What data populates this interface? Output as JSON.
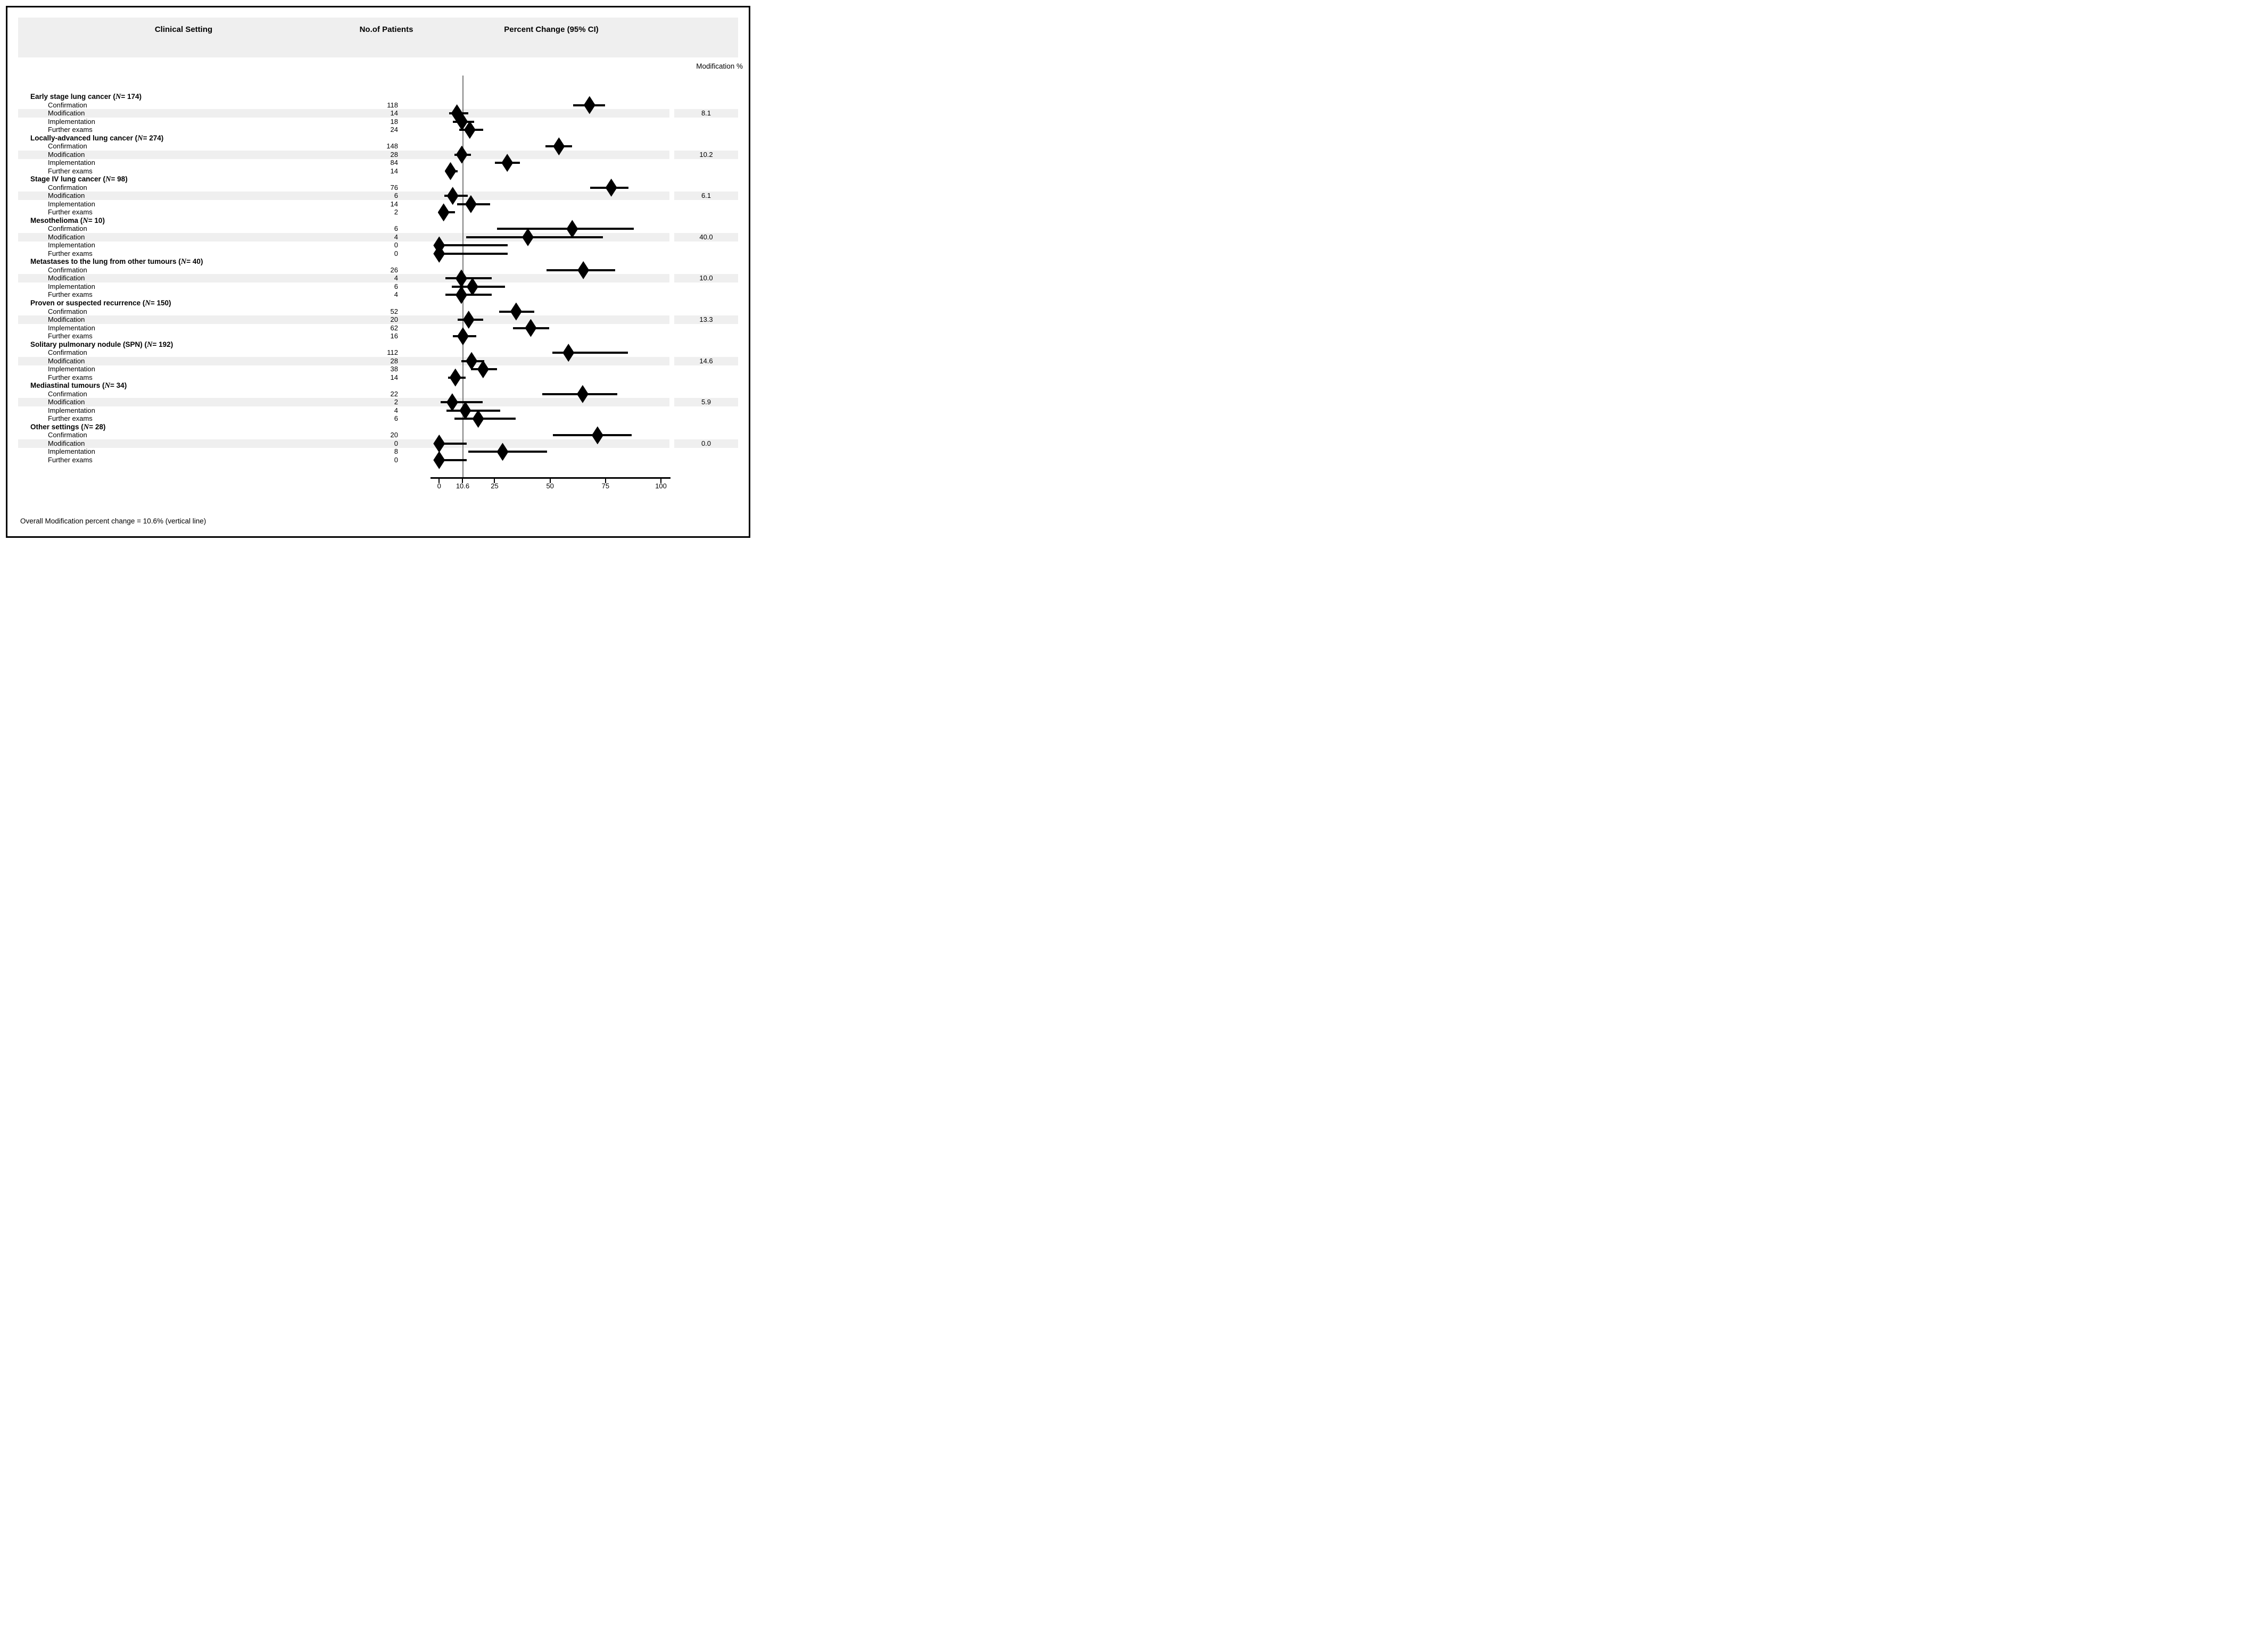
{
  "figure": {
    "columns": {
      "clinical_setting": "Clinical Setting",
      "no_of_patients": "No.of Patients",
      "percent_change": "Percent Change (95% CI)"
    },
    "right_column_label": "Modification %",
    "footnote": "Overall Modification percent change = 10.6% (vertical line)"
  },
  "colors": {
    "band": "#efefef",
    "header_band": "#efefef",
    "ref_line": "#7d7d7d",
    "marker": "#000000",
    "text": "#000000"
  },
  "chart_data": {
    "type": "scatter",
    "subtype": "forest-plot",
    "title": "",
    "xlabel": "",
    "ylabel": "",
    "xlim": [
      -4,
      104
    ],
    "grid": false,
    "legend": "none",
    "x_ticks": [
      {
        "label": "0",
        "value": 0
      },
      {
        "label": "10.6",
        "value": 10.6
      },
      {
        "label": "25",
        "value": 25
      },
      {
        "label": "50",
        "value": 50
      },
      {
        "label": "75",
        "value": 75
      },
      {
        "label": "100",
        "value": 100
      }
    ],
    "reference_line": {
      "value": 10.6,
      "meaning": "Overall Modification percent change"
    },
    "n_symbol": "N",
    "highlighted_row": "Modification",
    "groups": [
      {
        "label": "Early stage lung cancer",
        "n": "174",
        "modification_pct": "8.1",
        "rows": [
          {
            "category": "Confirmation",
            "patients": "118",
            "estimate": 67.8,
            "ci_low": 60.4,
            "ci_high": 74.7
          },
          {
            "category": "Modification",
            "patients": "14",
            "estimate": 8.0,
            "ci_low": 4.5,
            "ci_high": 13.1
          },
          {
            "category": "Implementation",
            "patients": "18",
            "estimate": 10.3,
            "ci_low": 6.2,
            "ci_high": 15.8
          },
          {
            "category": "Further exams",
            "patients": "24",
            "estimate": 13.8,
            "ci_low": 9.0,
            "ci_high": 19.8
          }
        ]
      },
      {
        "label": "Locally-advanced lung cancer",
        "n": "274",
        "modification_pct": "10.2",
        "rows": [
          {
            "category": "Confirmation",
            "patients": "148",
            "estimate": 54.0,
            "ci_low": 47.9,
            "ci_high": 60.0
          },
          {
            "category": "Modification",
            "patients": "28",
            "estimate": 10.2,
            "ci_low": 6.9,
            "ci_high": 14.4
          },
          {
            "category": "Implementation",
            "patients": "84",
            "estimate": 30.7,
            "ci_low": 25.2,
            "ci_high": 36.5
          },
          {
            "category": "Further exams",
            "patients": "14",
            "estimate": 5.1,
            "ci_low": 2.8,
            "ci_high": 8.4
          }
        ]
      },
      {
        "label": "Stage IV lung cancer",
        "n": "98",
        "modification_pct": "6.1",
        "rows": [
          {
            "category": "Confirmation",
            "patients": "76",
            "estimate": 77.6,
            "ci_low": 68.0,
            "ci_high": 85.4
          },
          {
            "category": "Modification",
            "patients": "6",
            "estimate": 6.1,
            "ci_low": 2.3,
            "ci_high": 12.9
          },
          {
            "category": "Implementation",
            "patients": "14",
            "estimate": 14.3,
            "ci_low": 8.0,
            "ci_high": 22.9
          },
          {
            "category": "Further exams",
            "patients": "2",
            "estimate": 2.0,
            "ci_low": 0.2,
            "ci_high": 7.2
          }
        ]
      },
      {
        "label": "Mesothelioma",
        "n": "10",
        "modification_pct": "40.0",
        "rows": [
          {
            "category": "Confirmation",
            "patients": "6",
            "estimate": 60.0,
            "ci_low": 26.2,
            "ci_high": 87.8
          },
          {
            "category": "Modification",
            "patients": "4",
            "estimate": 40.0,
            "ci_low": 12.2,
            "ci_high": 73.8
          },
          {
            "category": "Implementation",
            "patients": "0",
            "estimate": 0.0,
            "ci_low": 0.0,
            "ci_high": 30.8
          },
          {
            "category": "Further exams",
            "patients": "0",
            "estimate": 0.0,
            "ci_low": 0.0,
            "ci_high": 30.8
          }
        ]
      },
      {
        "label": "Metastases to the lung from other tumours",
        "n": "40",
        "modification_pct": "10.0",
        "rows": [
          {
            "category": "Confirmation",
            "patients": "26",
            "estimate": 65.0,
            "ci_low": 48.3,
            "ci_high": 79.4
          },
          {
            "category": "Modification",
            "patients": "4",
            "estimate": 10.0,
            "ci_low": 2.8,
            "ci_high": 23.7
          },
          {
            "category": "Implementation",
            "patients": "6",
            "estimate": 15.0,
            "ci_low": 5.7,
            "ci_high": 29.8
          },
          {
            "category": "Further exams",
            "patients": "4",
            "estimate": 10.0,
            "ci_low": 2.8,
            "ci_high": 23.7
          }
        ]
      },
      {
        "label": "Proven or suspected recurrence",
        "n": "150",
        "modification_pct": "13.3",
        "rows": [
          {
            "category": "Confirmation",
            "patients": "52",
            "estimate": 34.7,
            "ci_low": 27.1,
            "ci_high": 42.9
          },
          {
            "category": "Modification",
            "patients": "20",
            "estimate": 13.3,
            "ci_low": 8.3,
            "ci_high": 19.8
          },
          {
            "category": "Implementation",
            "patients": "62",
            "estimate": 41.3,
            "ci_low": 33.4,
            "ci_high": 49.7
          },
          {
            "category": "Further exams",
            "patients": "16",
            "estimate": 10.7,
            "ci_low": 6.2,
            "ci_high": 16.8
          }
        ]
      },
      {
        "label": "Solitary pulmonary nodule (SPN)",
        "n": "192",
        "modification_pct": "14.6",
        "rows": [
          {
            "category": "Confirmation",
            "patients": "112",
            "estimate": 58.3,
            "ci_low": 51.0,
            "ci_high": 85.0
          },
          {
            "category": "Modification",
            "patients": "28",
            "estimate": 14.6,
            "ci_low": 9.9,
            "ci_high": 20.4
          },
          {
            "category": "Implementation",
            "patients": "38",
            "estimate": 19.8,
            "ci_low": 14.4,
            "ci_high": 26.2
          },
          {
            "category": "Further exams",
            "patients": "14",
            "estimate": 7.3,
            "ci_low": 4.0,
            "ci_high": 11.9
          }
        ]
      },
      {
        "label": "Mediastinal tumours",
        "n": "34",
        "modification_pct": "5.9",
        "rows": [
          {
            "category": "Confirmation",
            "patients": "22",
            "estimate": 64.7,
            "ci_low": 46.5,
            "ci_high": 80.3
          },
          {
            "category": "Modification",
            "patients": "2",
            "estimate": 5.9,
            "ci_low": 0.7,
            "ci_high": 19.7
          },
          {
            "category": "Implementation",
            "patients": "4",
            "estimate": 11.8,
            "ci_low": 3.3,
            "ci_high": 27.5
          },
          {
            "category": "Further exams",
            "patients": "6",
            "estimate": 17.6,
            "ci_low": 6.8,
            "ci_high": 34.5
          }
        ]
      },
      {
        "label": "Other settings",
        "n": "28",
        "modification_pct": "0.0",
        "rows": [
          {
            "category": "Confirmation",
            "patients": "20",
            "estimate": 71.4,
            "ci_low": 51.3,
            "ci_high": 86.8
          },
          {
            "category": "Modification",
            "patients": "0",
            "estimate": 0.0,
            "ci_low": 0.0,
            "ci_high": 12.3
          },
          {
            "category": "Implementation",
            "patients": "8",
            "estimate": 28.6,
            "ci_low": 13.2,
            "ci_high": 48.7
          },
          {
            "category": "Further exams",
            "patients": "0",
            "estimate": 0.0,
            "ci_low": 0.0,
            "ci_high": 12.3
          }
        ]
      }
    ]
  }
}
